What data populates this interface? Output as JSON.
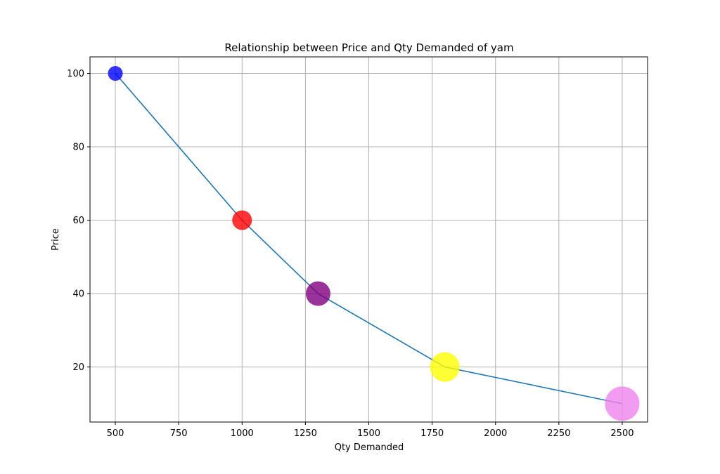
{
  "chart_data": {
    "type": "scatter",
    "title": "Relationship between Price and Qty Demanded of yam",
    "xlabel": "Qty Demanded",
    "ylabel": "Price",
    "xlim": [
      400,
      2600
    ],
    "ylim": [
      5,
      104.5
    ],
    "xticks": [
      500,
      750,
      1000,
      1250,
      1500,
      1750,
      2000,
      2250,
      2500
    ],
    "yticks": [
      20,
      40,
      60,
      80,
      100
    ],
    "grid": true,
    "line_color": "#1f77b4",
    "series": [
      {
        "points": [
          {
            "x": 500,
            "y": 100,
            "color": "#0000ff",
            "size": 1
          },
          {
            "x": 1000,
            "y": 60,
            "color": "#ff0000",
            "size": 2
          },
          {
            "x": 1300,
            "y": 40,
            "color": "#800080",
            "size": 3
          },
          {
            "x": 1800,
            "y": 20,
            "color": "#ffff00",
            "size": 4
          },
          {
            "x": 2500,
            "y": 10,
            "color": "#ee82ee",
            "size": 5
          }
        ]
      }
    ]
  }
}
